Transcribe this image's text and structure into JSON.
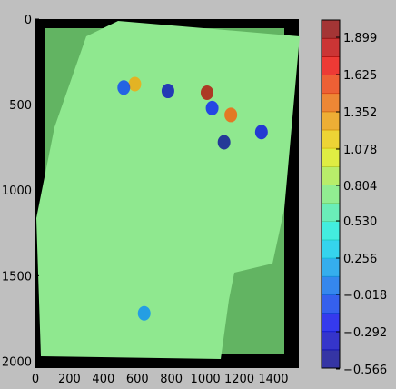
{
  "chart_data": {
    "type": "heatmap",
    "x_ticks": [
      0,
      200,
      400,
      600,
      800,
      1000,
      1200,
      1400
    ],
    "y_ticks": [
      0,
      500,
      1000,
      1500,
      2000
    ],
    "xlim": [
      0,
      1550
    ],
    "ylim": [
      2040,
      0
    ],
    "colorbar": {
      "ticks": [
        "1.899",
        "1.625",
        "1.352",
        "1.078",
        "0.804",
        "0.530",
        "0.256",
        "−0.018",
        "−0.292",
        "−0.566"
      ],
      "min": -0.566,
      "max": 2.036,
      "levels": 19,
      "colormap": "jet"
    },
    "background_value": 0.804,
    "background_color": "#62b462",
    "overlay_color": "#8fe88f",
    "hotspots": [
      {
        "x": 1010,
        "y": 430,
        "value": 1.9
      },
      {
        "x": 1150,
        "y": 560,
        "value": 1.5
      },
      {
        "x": 585,
        "y": 380,
        "value": 1.3
      },
      {
        "x": 780,
        "y": 420,
        "value": -0.4
      },
      {
        "x": 1110,
        "y": 720,
        "value": -0.5
      },
      {
        "x": 1330,
        "y": 660,
        "value": -0.3
      },
      {
        "x": 1040,
        "y": 520,
        "value": -0.2
      },
      {
        "x": 520,
        "y": 400,
        "value": -0.1
      },
      {
        "x": 640,
        "y": 1720,
        "value": 0.1
      }
    ]
  }
}
